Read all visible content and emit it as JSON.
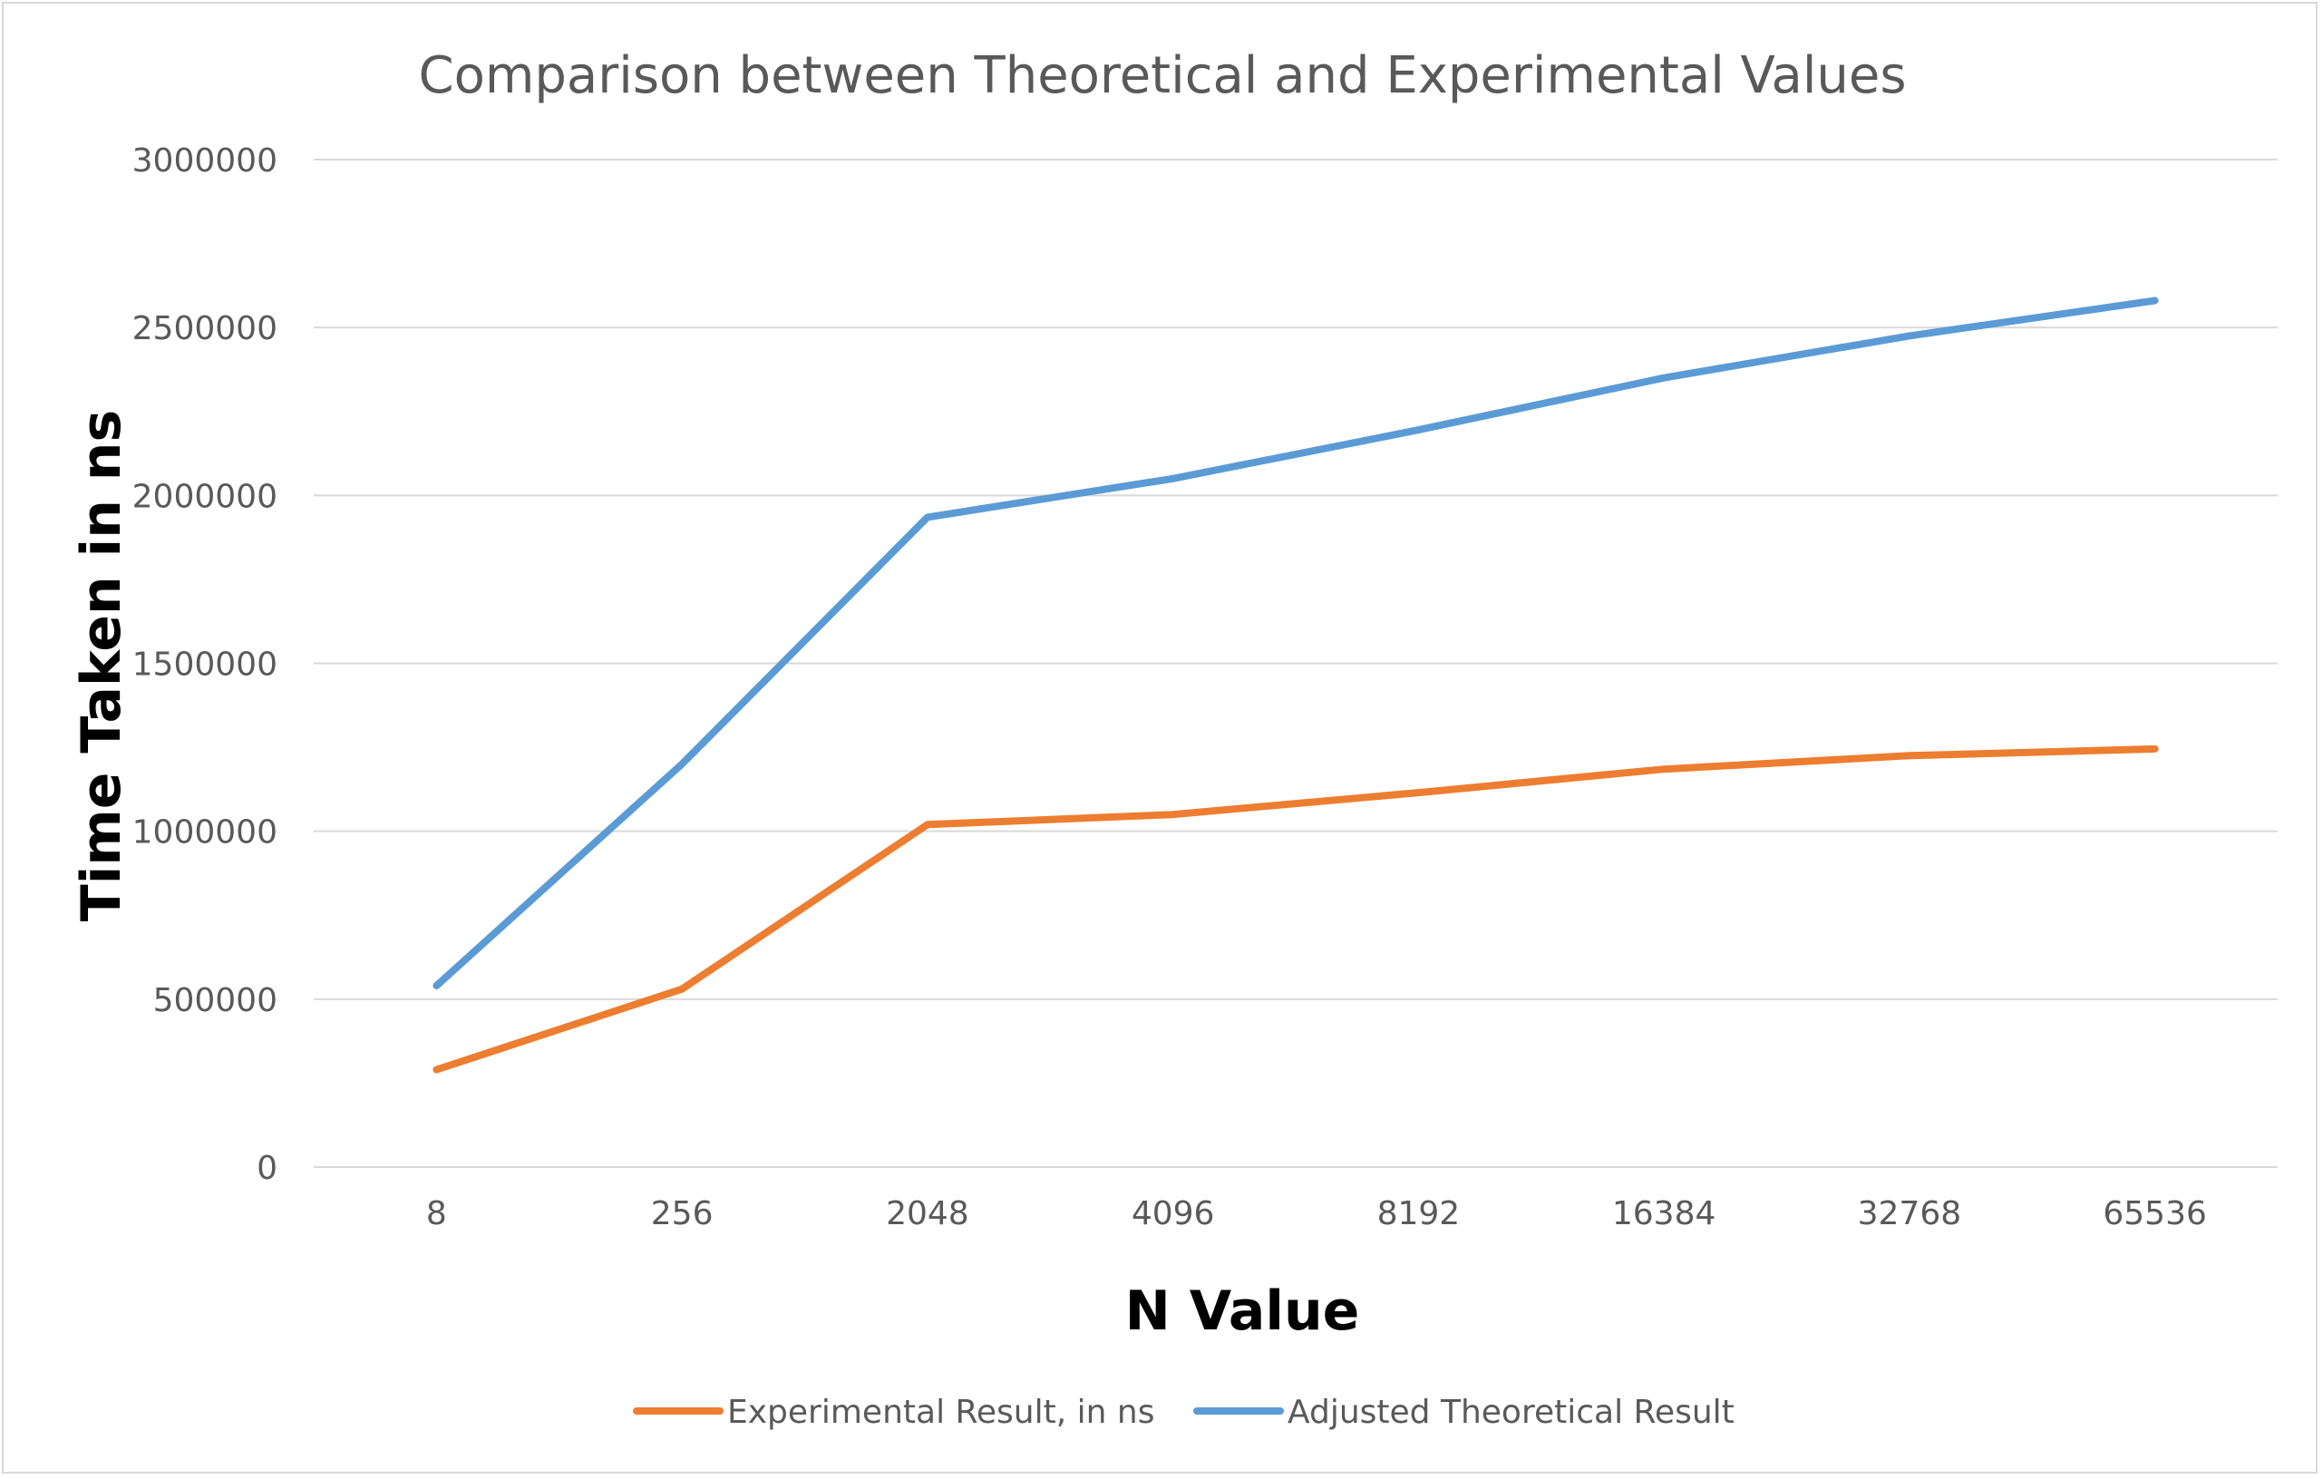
{
  "chart_data": {
    "type": "line",
    "title": "Comparison between Theoretical and Experimental Values",
    "xlabel": "N Value",
    "ylabel": "Time Taken in ns",
    "categories": [
      "8",
      "256",
      "2048",
      "4096",
      "8192",
      "16384",
      "32768",
      "65536"
    ],
    "ylim": [
      0,
      3000000
    ],
    "yticks": [
      "0",
      "500000",
      "1000000",
      "1500000",
      "2000000",
      "2500000",
      "3000000"
    ],
    "grid": true,
    "legend_position": "bottom",
    "series": [
      {
        "name": "Experimental Result, in ns",
        "color": "#ED7D31",
        "values": [
          290000,
          530000,
          1020000,
          1050000,
          1115000,
          1185000,
          1225000,
          1245000
        ]
      },
      {
        "name": "Adjusted Theoretical Result",
        "color": "#5B9BD5",
        "values": [
          540000,
          1200000,
          1935000,
          2050000,
          2195000,
          2350000,
          2475000,
          2580000
        ]
      }
    ]
  }
}
